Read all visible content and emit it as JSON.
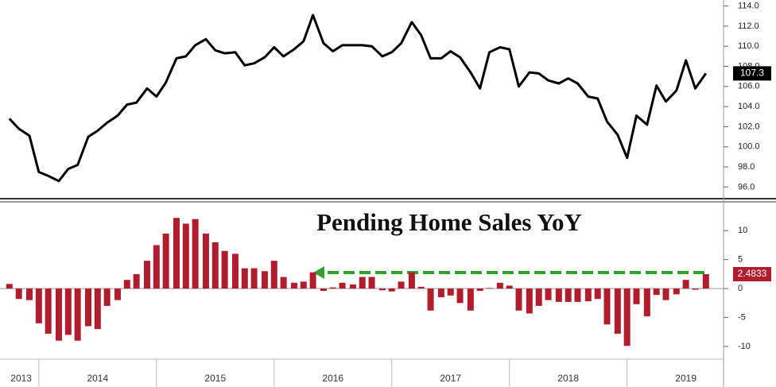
{
  "chart_data": [
    {
      "type": "line",
      "color": "#000000",
      "x": [
        2013.75,
        2013.83,
        2013.92,
        2014,
        2014.08,
        2014.17,
        2014.25,
        2014.33,
        2014.42,
        2014.5,
        2014.58,
        2014.67,
        2014.75,
        2014.83,
        2014.92,
        2015,
        2015.08,
        2015.17,
        2015.25,
        2015.33,
        2015.42,
        2015.5,
        2015.58,
        2015.67,
        2015.75,
        2015.83,
        2015.92,
        2016,
        2016.08,
        2016.17,
        2016.25,
        2016.33,
        2016.42,
        2016.5,
        2016.58,
        2016.67,
        2016.75,
        2016.83,
        2016.92,
        2017,
        2017.08,
        2017.17,
        2017.25,
        2017.33,
        2017.42,
        2017.5,
        2017.58,
        2017.67,
        2017.75,
        2017.83,
        2017.92,
        2018,
        2018.08,
        2018.17,
        2018.25,
        2018.33,
        2018.42,
        2018.5,
        2018.58,
        2018.67,
        2018.75,
        2018.83,
        2018.92,
        2019,
        2019.08,
        2019.17,
        2019.25,
        2019.33,
        2019.42,
        2019.5,
        2019.58,
        2019.67
      ],
      "values": [
        102.8,
        101.8,
        101.1,
        97.5,
        97.1,
        96.6,
        97.8,
        98.2,
        101.0,
        101.6,
        102.4,
        103.1,
        104.2,
        104.4,
        105.8,
        105.0,
        106.4,
        108.8,
        109.0,
        110.1,
        110.7,
        109.6,
        109.3,
        109.4,
        108.1,
        108.3,
        108.9,
        109.9,
        109.0,
        109.7,
        110.5,
        113.1,
        110.3,
        109.5,
        110.1,
        110.1,
        110.1,
        110.0,
        109.0,
        109.4,
        110.3,
        112.4,
        111.1,
        108.8,
        108.8,
        109.5,
        108.9,
        107.4,
        105.8,
        109.4,
        109.9,
        109.7,
        106.0,
        107.4,
        107.3,
        106.6,
        106.3,
        106.8,
        106.3,
        105.0,
        104.8,
        102.5,
        101.2,
        98.9,
        103.1,
        102.2,
        106.1,
        104.5,
        105.6,
        108.6,
        105.8,
        107.3
      ],
      "xlim": [
        2013.67,
        2019.82
      ],
      "ylim": [
        95,
        114.6
      ],
      "yticks": [
        {
          "value": 96,
          "label": "96.0"
        },
        {
          "value": 98,
          "label": "98.0"
        },
        {
          "value": 100,
          "label": "100.0"
        },
        {
          "value": 102,
          "label": "102.0"
        },
        {
          "value": 104,
          "label": "104.0"
        },
        {
          "value": 106,
          "label": "106.0"
        },
        {
          "value": 108,
          "label": "108.0"
        },
        {
          "value": 110,
          "label": "110.0"
        },
        {
          "value": 112,
          "label": "112.0"
        },
        {
          "value": 114,
          "label": "114.0"
        }
      ],
      "last_value_label": true
    },
    {
      "type": "bar",
      "title": "Pending Home Sales YoY",
      "color": "#b01e2e",
      "x": [
        2013.75,
        2013.83,
        2013.92,
        2014,
        2014.08,
        2014.17,
        2014.25,
        2014.33,
        2014.42,
        2014.5,
        2014.58,
        2014.67,
        2014.75,
        2014.83,
        2014.92,
        2015,
        2015.08,
        2015.17,
        2015.25,
        2015.33,
        2015.42,
        2015.5,
        2015.58,
        2015.67,
        2015.75,
        2015.83,
        2015.92,
        2016,
        2016.08,
        2016.17,
        2016.25,
        2016.33,
        2016.42,
        2016.5,
        2016.58,
        2016.67,
        2016.75,
        2016.83,
        2016.92,
        2017,
        2017.08,
        2017.17,
        2017.25,
        2017.33,
        2017.42,
        2017.5,
        2017.58,
        2017.67,
        2017.75,
        2017.83,
        2017.92,
        2018,
        2018.08,
        2018.17,
        2018.25,
        2018.33,
        2018.42,
        2018.5,
        2018.58,
        2018.67,
        2018.75,
        2018.83,
        2018.92,
        2019,
        2019.08,
        2019.17,
        2019.25,
        2019.33,
        2019.42,
        2019.5,
        2019.58,
        2019.67
      ],
      "values": [
        0.8,
        -1.8,
        -2,
        -6,
        -7.8,
        -9,
        -8,
        -9,
        -6.5,
        -7,
        -3,
        -2,
        1.5,
        2.5,
        4.8,
        7.5,
        9.5,
        12.2,
        11.2,
        12,
        9.5,
        8,
        6.5,
        6,
        3.5,
        3.5,
        3,
        4.8,
        2,
        1,
        1.2,
        2.8,
        -0.4,
        0.2,
        1,
        0.7,
        2,
        2,
        -0.3,
        -0.5,
        1.2,
        2.8,
        0.3,
        -3.8,
        -1.5,
        -1.2,
        -2.5,
        -3.8,
        -0.4,
        0.1,
        1,
        0.5,
        -3.8,
        -4.3,
        -3,
        -2,
        -2.3,
        -2.3,
        -2.3,
        -2.2,
        -1.8,
        -6.2,
        -7.8,
        -9.9,
        -2.7,
        -4.8,
        -1.1,
        -2,
        -1,
        1.5,
        -0.2,
        2.4833
      ],
      "xlim": [
        2013.67,
        2019.82
      ],
      "ylim": [
        -12.2,
        14.7
      ],
      "yticks": [
        10,
        5,
        0,
        -5,
        -10
      ],
      "xticks": [
        {
          "value": 2013.85,
          "label": "2013"
        },
        {
          "value": 2014.5,
          "label": "2014"
        },
        {
          "value": 2015.5,
          "label": "2015"
        },
        {
          "value": 2016.5,
          "label": "2016"
        },
        {
          "value": 2017.5,
          "label": "2017"
        },
        {
          "value": 2018.5,
          "label": "2018"
        },
        {
          "value": 2019.5,
          "label": "2019"
        }
      ],
      "last_value_label": true
    }
  ]
}
